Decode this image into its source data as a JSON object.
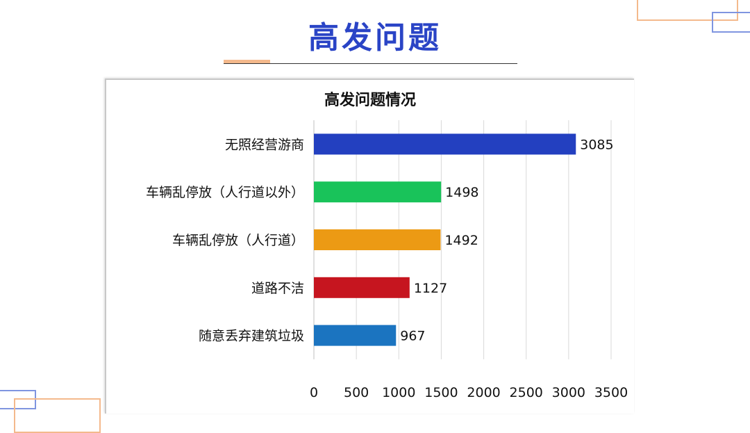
{
  "slide": {
    "title": "高发问题"
  },
  "chart_data": {
    "type": "bar",
    "orientation": "horizontal",
    "title": "高发问题情况",
    "categories": [
      "无照经营游商",
      "车辆乱停放（人行道以外）",
      "车辆乱停放（人行道）",
      "道路不洁",
      "随意丢弃建筑垃圾"
    ],
    "values": [
      3085,
      1498,
      1492,
      1127,
      967
    ],
    "colors": [
      "#2340c0",
      "#19c35a",
      "#ec9a14",
      "#c6151f",
      "#1b74c0"
    ],
    "xlim": [
      0,
      3500
    ],
    "xticks": [
      0,
      500,
      1000,
      1500,
      2000,
      2500,
      3000,
      3500
    ],
    "grid": true,
    "data_labels": true,
    "legend": "none"
  }
}
